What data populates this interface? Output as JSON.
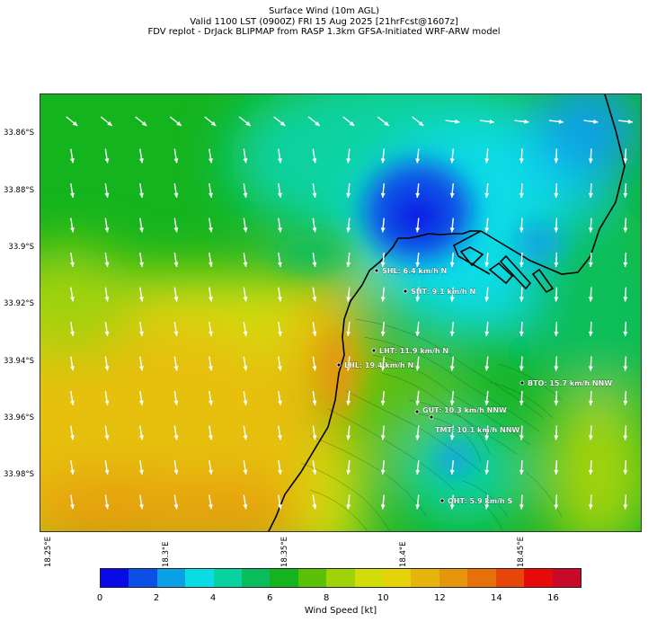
{
  "header": {
    "line1": "Surface Wind (10m AGL)",
    "line2": "Valid 1100 LST (0900Z) FRI 15 Aug 2025 [21hrFcst@1607z]",
    "line3": "FDV replot - DrJack BLIPMAP from RASP 1.3km GFSA-Initiated WRF-ARW model"
  },
  "map": {
    "lat_ticks": [
      "33.86°S",
      "33.88°S",
      "33.9°S",
      "33.92°S",
      "33.94°S",
      "33.96°S",
      "33.98°S"
    ],
    "lon_ticks": [
      "18.25°E",
      "18.3°E",
      "18.35°E",
      "18.4°E",
      "18.45°E"
    ],
    "colors": {
      "coast": "#000000",
      "arrows": "#ffffff"
    },
    "stations": [
      {
        "id": "SHL",
        "label": "SHL: 6.4 km/h N"
      },
      {
        "id": "SHT",
        "label": "SHT: 9.1 km/h N"
      },
      {
        "id": "LHT",
        "label": "LHT: 11.9 km/h N"
      },
      {
        "id": "LHL",
        "label": "LHL: 19.4 km/h N"
      },
      {
        "id": "BTO",
        "label": "BTO: 15.7 km/h NNW"
      },
      {
        "id": "GUT",
        "label": "GUT: 10.3 km/h NNW"
      },
      {
        "id": "TMT",
        "label": "TMT: 10.1 km/h NNW"
      },
      {
        "id": "OHT",
        "label": "OHT: 5.9 km/h S"
      }
    ]
  },
  "colorbar": {
    "label": "Wind Speed [kt]",
    "ticks": [
      "0",
      "2",
      "4",
      "6",
      "8",
      "10",
      "12",
      "14",
      "16"
    ],
    "colors": [
      "#0a0ae6",
      "#0a50e6",
      "#0aa0e6",
      "#0adce6",
      "#08d2a0",
      "#08be5a",
      "#14b41e",
      "#5ac008",
      "#a0d208",
      "#d2dc08",
      "#e6d208",
      "#e6b40a",
      "#e6960a",
      "#e6700a",
      "#e6460a",
      "#e60a0a",
      "#c80a28"
    ]
  }
}
